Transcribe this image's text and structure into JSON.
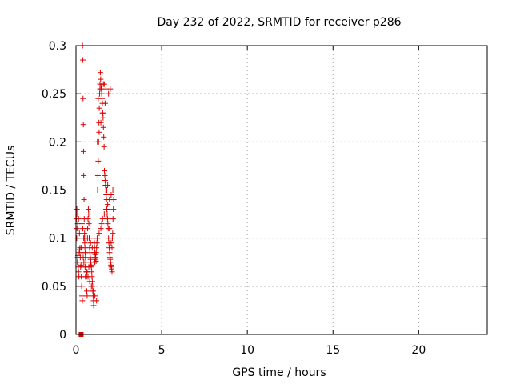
{
  "chart_data": {
    "type": "scatter",
    "title": "Day 232 of 2022, SRMTID for receiver p286",
    "xlabel": "GPS time / hours",
    "ylabel": "SRMTID / TECUs",
    "xlim": [
      0,
      24
    ],
    "ylim": [
      0,
      0.3
    ],
    "xticks": [
      "0",
      "5",
      "10",
      "15",
      "20"
    ],
    "yticks": [
      "0",
      "0.05",
      "0.1",
      "0.15",
      "0.2",
      "0.25",
      "0.3"
    ],
    "grid": true,
    "marker": "+",
    "color": "#dd0000",
    "series": [
      {
        "x": [
          0.02,
          0.04,
          0.05,
          0.06,
          0.08,
          0.1,
          0.12,
          0.13,
          0.15,
          0.17,
          0.19,
          0.21,
          0.23,
          0.25,
          0.27,
          0.29,
          0.31,
          0.33,
          0.35,
          0.37,
          0.38,
          0.4,
          0.41,
          0.43,
          0.44,
          0.45,
          0.47,
          0.48,
          0.5,
          0.51,
          0.52,
          0.54,
          0.55,
          0.57,
          0.58,
          0.6,
          0.62,
          0.63,
          0.65,
          0.67,
          0.68,
          0.7,
          0.72,
          0.74,
          0.75,
          0.77,
          0.79,
          0.81,
          0.83,
          0.85,
          0.86,
          0.88,
          0.9,
          0.92,
          0.93,
          0.95,
          0.97,
          0.98,
          1.0,
          1.02,
          1.03,
          1.05,
          1.07,
          1.08,
          1.1,
          1.12,
          1.13,
          1.15,
          1.17,
          1.18,
          1.2,
          1.22,
          1.24,
          1.26,
          1.28,
          1.3,
          1.32,
          1.34,
          1.36,
          1.38,
          1.4,
          1.42,
          1.44,
          1.46,
          1.48,
          1.5,
          1.52,
          1.54,
          1.56,
          1.58,
          1.6,
          1.62,
          1.64,
          1.66,
          1.68,
          1.7,
          1.72,
          1.74,
          1.76,
          1.78,
          1.8,
          1.82,
          1.84,
          1.86,
          1.88,
          1.9,
          1.92,
          1.94,
          1.96,
          1.98,
          2.0,
          2.02,
          2.04,
          2.06,
          2.08,
          2.1,
          2.12,
          2.14,
          2.16,
          2.18,
          2.2,
          0.05,
          0.1,
          0.15,
          0.2,
          0.3,
          0.35,
          0.42,
          0.46,
          0.53,
          0.6,
          0.7,
          0.8,
          0.9,
          1.0,
          1.1,
          1.2,
          1.25,
          1.35,
          1.45,
          1.5,
          1.55,
          1.65,
          1.75,
          1.85,
          1.95,
          2.05,
          2.15,
          1.3,
          1.4,
          1.6,
          1.7,
          1.9,
          2.0,
          0.55,
          0.65,
          0.75,
          1.1,
          1.15,
          1.05,
          0.95,
          0.85,
          0.45,
          0.5,
          0.4,
          0.35,
          1.25,
          1.35,
          1.45,
          1.55,
          1.65,
          1.75,
          1.8,
          1.85,
          1.95,
          2.05,
          2.1
        ],
        "y": [
          0.12,
          0.1,
          0.13,
          0.11,
          0.075,
          0.08,
          0.082,
          0.07,
          0.065,
          0.06,
          0.085,
          0.088,
          0.09,
          0.08,
          0.07,
          0.072,
          0.06,
          0.05,
          0.04,
          0.035,
          0.3,
          0.285,
          0.245,
          0.218,
          0.19,
          0.165,
          0.14,
          0.12,
          0.1,
          0.095,
          0.09,
          0.085,
          0.08,
          0.075,
          0.07,
          0.065,
          0.06,
          0.045,
          0.04,
          0.1,
          0.11,
          0.12,
          0.13,
          0.125,
          0.115,
          0.1,
          0.09,
          0.085,
          0.08,
          0.078,
          0.075,
          0.072,
          0.07,
          0.065,
          0.06,
          0.055,
          0.05,
          0.045,
          0.04,
          0.035,
          0.03,
          0.1,
          0.095,
          0.09,
          0.085,
          0.083,
          0.08,
          0.078,
          0.076,
          0.085,
          0.09,
          0.095,
          0.1,
          0.15,
          0.165,
          0.18,
          0.2,
          0.22,
          0.235,
          0.25,
          0.26,
          0.272,
          0.265,
          0.258,
          0.255,
          0.25,
          0.245,
          0.24,
          0.23,
          0.225,
          0.215,
          0.205,
          0.195,
          0.17,
          0.165,
          0.16,
          0.155,
          0.15,
          0.145,
          0.14,
          0.13,
          0.125,
          0.12,
          0.115,
          0.11,
          0.1,
          0.095,
          0.09,
          0.085,
          0.08,
          0.078,
          0.075,
          0.072,
          0.07,
          0.068,
          0.065,
          0.1,
          0.105,
          0.12,
          0.13,
          0.14,
          0.125,
          0.115,
          0.12,
          0.105,
          0.09,
          0.085,
          0.08,
          0.075,
          0.07,
          0.065,
          0.06,
          0.055,
          0.05,
          0.045,
          0.04,
          0.035,
          0.1,
          0.105,
          0.11,
          0.115,
          0.12,
          0.125,
          0.13,
          0.135,
          0.14,
          0.145,
          0.15,
          0.245,
          0.255,
          0.26,
          0.24,
          0.25,
          0.255,
          0.06,
          0.065,
          0.07,
          0.075,
          0.08,
          0.085,
          0.09,
          0.095,
          0.1,
          0.105,
          0.11,
          0.115,
          0.2,
          0.21,
          0.22,
          0.23,
          0.26,
          0.255,
          0.15,
          0.155,
          0.11,
          0.095,
          0.09
        ]
      }
    ]
  },
  "marker_extra": {
    "x": 0.3,
    "y": 0
  }
}
